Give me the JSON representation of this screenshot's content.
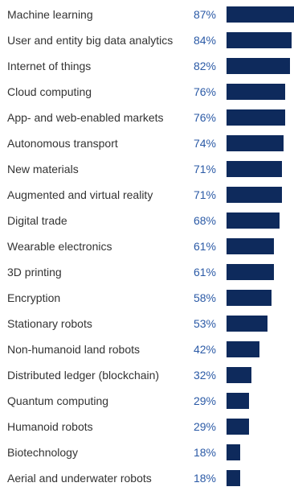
{
  "chart_data": {
    "type": "bar",
    "orientation": "horizontal",
    "title": "",
    "xlabel": "",
    "ylabel": "",
    "xlim": [
      0,
      87
    ],
    "grid": false,
    "categories": [
      "Machine learning",
      "User and entity big data analytics",
      "Internet of things",
      "Cloud computing",
      "App- and web-enabled markets",
      "Autonomous transport",
      "New materials",
      "Augmented and virtual reality",
      "Digital trade",
      "Wearable electronics",
      "3D printing",
      "Encryption",
      "Stationary robots",
      "Non-humanoid land robots",
      "Distributed ledger (blockchain)",
      "Quantum computing",
      "Humanoid robots",
      "Biotechnology",
      "Aerial and underwater robots"
    ],
    "values": [
      87,
      84,
      82,
      76,
      76,
      74,
      71,
      71,
      68,
      61,
      61,
      58,
      53,
      42,
      32,
      29,
      29,
      18,
      18
    ],
    "value_labels": [
      "87%",
      "84%",
      "82%",
      "76%",
      "76%",
      "74%",
      "71%",
      "71%",
      "68%",
      "61%",
      "61%",
      "58%",
      "53%",
      "42%",
      "32%",
      "29%",
      "29%",
      "18%",
      "18%"
    ],
    "colors": {
      "bar": "#0e2a5c",
      "value_text": "#2b5aa6",
      "label_text": "#333333"
    }
  }
}
